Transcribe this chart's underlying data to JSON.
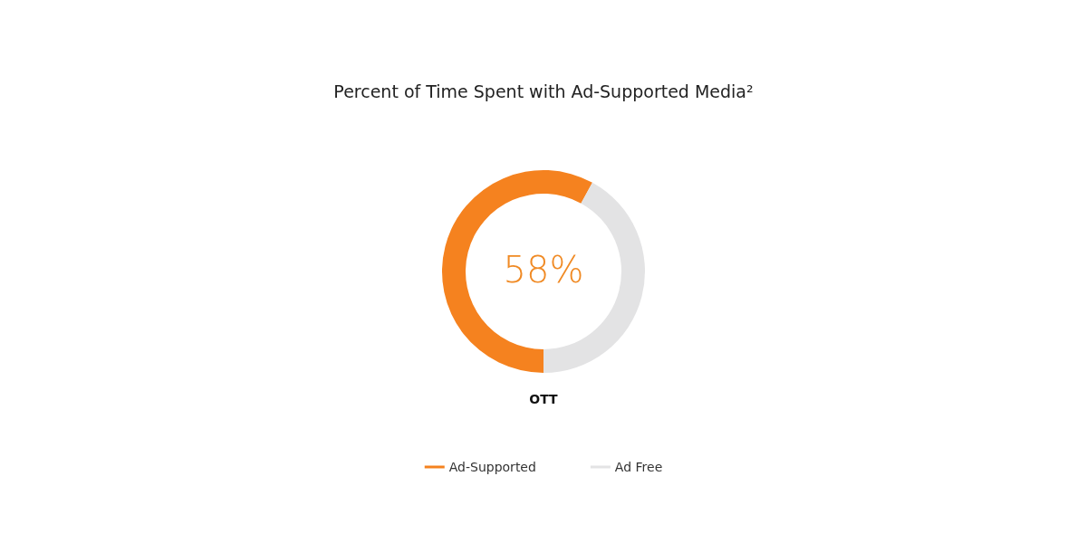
{
  "chart_data": {
    "type": "donut",
    "title": "Percent of Time Spent with Ad-Supported Media²",
    "xlabel": "OTT",
    "annotations": [
      "58%"
    ],
    "categories": [
      "Ad-Supported",
      "Ad Free"
    ],
    "values": [
      58,
      42
    ],
    "colors": [
      "#f5821f",
      "#e3e3e4"
    ],
    "legend": "bottom"
  }
}
